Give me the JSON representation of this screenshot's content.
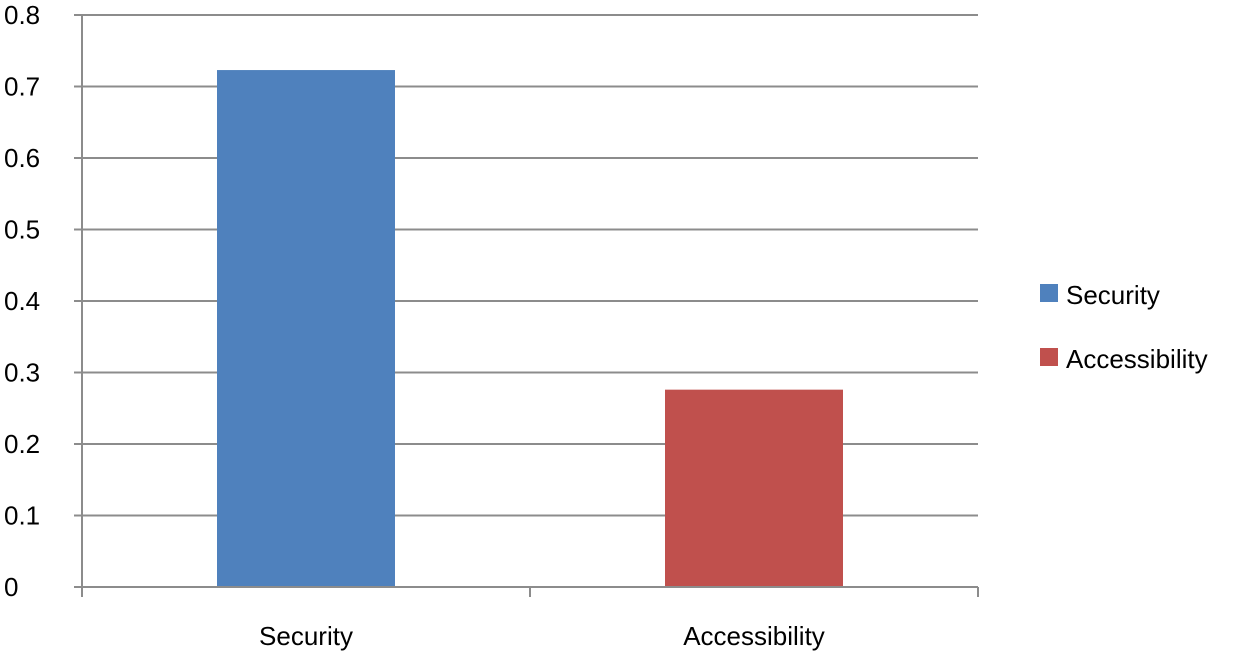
{
  "chart_data": {
    "type": "bar",
    "categories": [
      "Security",
      "Accessibility"
    ],
    "values": [
      0.723,
      0.276
    ],
    "colors": [
      "#4f81bd",
      "#c0504d"
    ],
    "ylim": [
      0,
      0.8
    ],
    "yticks": [
      "0",
      "0.1",
      "0.2",
      "0.3",
      "0.4",
      "0.5",
      "0.6",
      "0.7",
      "0.8"
    ],
    "grid": true,
    "legend": {
      "position": "right",
      "entries": [
        {
          "label": "Security",
          "color": "#4f81bd"
        },
        {
          "label": "Accessibility",
          "color": "#c0504d"
        }
      ]
    },
    "title": "",
    "xlabel": "",
    "ylabel": ""
  }
}
